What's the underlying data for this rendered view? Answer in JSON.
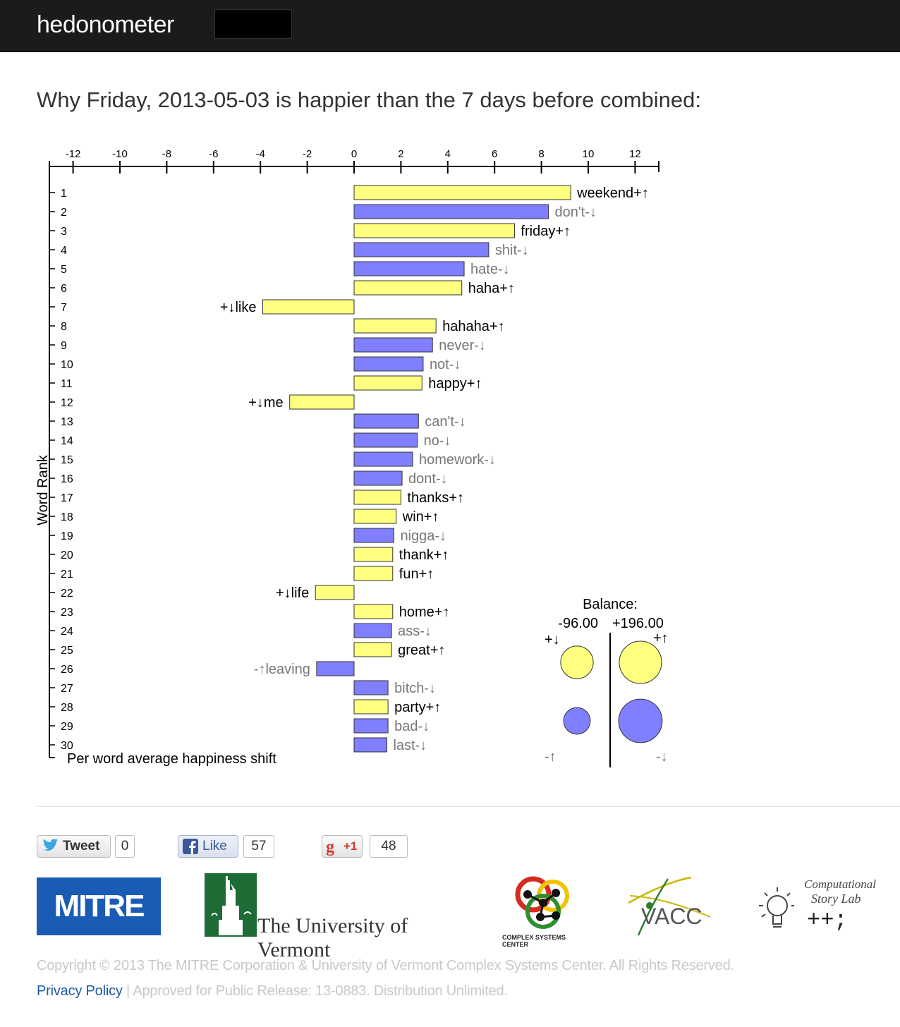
{
  "nav": {
    "brand": "hedonometer"
  },
  "heading": "Why Friday, 2013-05-03 is happier than the 7 days before combined:",
  "chart_data": {
    "type": "bar",
    "orientation": "horizontal",
    "title": "Why Friday, 2013-05-03 is happier than the 7 days before combined:",
    "xlabel": "Per word average happiness shift",
    "ylabel": "Word Rank",
    "xlim": [
      -13,
      13
    ],
    "x_ticks": [
      -12,
      -10,
      -8,
      -6,
      -4,
      -2,
      0,
      2,
      4,
      6,
      8,
      10,
      12
    ],
    "words": [
      {
        "rank": 1,
        "label": "weekend+↑",
        "value": 9.25,
        "type": "+↑"
      },
      {
        "rank": 2,
        "label": "don't-↓",
        "value": 8.3,
        "type": "-↓"
      },
      {
        "rank": 3,
        "label": "friday+↑",
        "value": 6.85,
        "type": "+↑"
      },
      {
        "rank": 4,
        "label": "shit-↓",
        "value": 5.75,
        "type": "-↓"
      },
      {
        "rank": 5,
        "label": "hate-↓",
        "value": 4.7,
        "type": "-↓"
      },
      {
        "rank": 6,
        "label": "haha+↑",
        "value": 4.6,
        "type": "+↑"
      },
      {
        "rank": 7,
        "label": "+↓like",
        "value": -3.9,
        "type": "+↓"
      },
      {
        "rank": 8,
        "label": "hahaha+↑",
        "value": 3.5,
        "type": "+↑"
      },
      {
        "rank": 9,
        "label": "never-↓",
        "value": 3.35,
        "type": "-↓"
      },
      {
        "rank": 10,
        "label": "not-↓",
        "value": 2.95,
        "type": "-↓"
      },
      {
        "rank": 11,
        "label": "happy+↑",
        "value": 2.9,
        "type": "+↑"
      },
      {
        "rank": 12,
        "label": "+↓me",
        "value": -2.75,
        "type": "+↓"
      },
      {
        "rank": 13,
        "label": "can't-↓",
        "value": 2.75,
        "type": "-↓"
      },
      {
        "rank": 14,
        "label": "no-↓",
        "value": 2.7,
        "type": "-↓"
      },
      {
        "rank": 15,
        "label": "homework-↓",
        "value": 2.5,
        "type": "-↓"
      },
      {
        "rank": 16,
        "label": "dont-↓",
        "value": 2.05,
        "type": "-↓"
      },
      {
        "rank": 17,
        "label": "thanks+↑",
        "value": 2.0,
        "type": "+↑"
      },
      {
        "rank": 18,
        "label": "win+↑",
        "value": 1.8,
        "type": "+↑"
      },
      {
        "rank": 19,
        "label": "nigga-↓",
        "value": 1.7,
        "type": "-↓"
      },
      {
        "rank": 20,
        "label": "thank+↑",
        "value": 1.65,
        "type": "+↑"
      },
      {
        "rank": 21,
        "label": "fun+↑",
        "value": 1.65,
        "type": "+↑"
      },
      {
        "rank": 22,
        "label": "+↓life",
        "value": -1.65,
        "type": "+↓"
      },
      {
        "rank": 23,
        "label": "home+↑",
        "value": 1.65,
        "type": "+↑"
      },
      {
        "rank": 24,
        "label": "ass-↓",
        "value": 1.6,
        "type": "-↓"
      },
      {
        "rank": 25,
        "label": "great+↑",
        "value": 1.6,
        "type": "+↑"
      },
      {
        "rank": 26,
        "label": "-↑leaving",
        "value": -1.6,
        "type": "-↑"
      },
      {
        "rank": 27,
        "label": "bitch-↓",
        "value": 1.45,
        "type": "-↓"
      },
      {
        "rank": 28,
        "label": "party+↑",
        "value": 1.45,
        "type": "+↑"
      },
      {
        "rank": 29,
        "label": "bad-↓",
        "value": 1.45,
        "type": "-↓"
      },
      {
        "rank": 30,
        "label": "last-↓",
        "value": 1.4,
        "type": "-↓"
      }
    ],
    "balance": {
      "title": "Balance:",
      "negative_total": "-96.00",
      "positive_total": "+196.00",
      "labels": {
        "plus_down": "+↓",
        "plus_up": "+↑",
        "minus_up": "-↑",
        "minus_down": "-↓"
      },
      "circle_sizes": {
        "plus_down": 0.77,
        "plus_up": 1.0,
        "minus_up": 0.63,
        "minus_down": 1.03
      }
    },
    "colors": {
      "positive_word": "#ffff80",
      "negative_word": "#7f7fff",
      "bar_stroke": "#333333",
      "label_positive": "#000000",
      "label_negative": "#777777"
    }
  },
  "social": {
    "tweet": {
      "label": "Tweet",
      "count": "0"
    },
    "like": {
      "label": "Like",
      "count": "57"
    },
    "plusone": {
      "label": "+1",
      "count": "48"
    }
  },
  "logos": {
    "mitre": "MITRE",
    "uvm": "The University of Vermont",
    "csc": "COMPLEX SYSTEMS CENTER",
    "vacc": "VACC",
    "csl_line1": "Computational",
    "csl_line2": "Story Lab",
    "csl_symbol": "++;"
  },
  "footer": {
    "copyright": "Copyright © 2013 The MITRE Corporation & University of Vermont Complex Systems Center. All Rights Reserved.",
    "privacy": "Privacy Policy",
    "separator": "|",
    "release": "Approved for Public Release: 13-0883. Distribution Unlimited."
  }
}
